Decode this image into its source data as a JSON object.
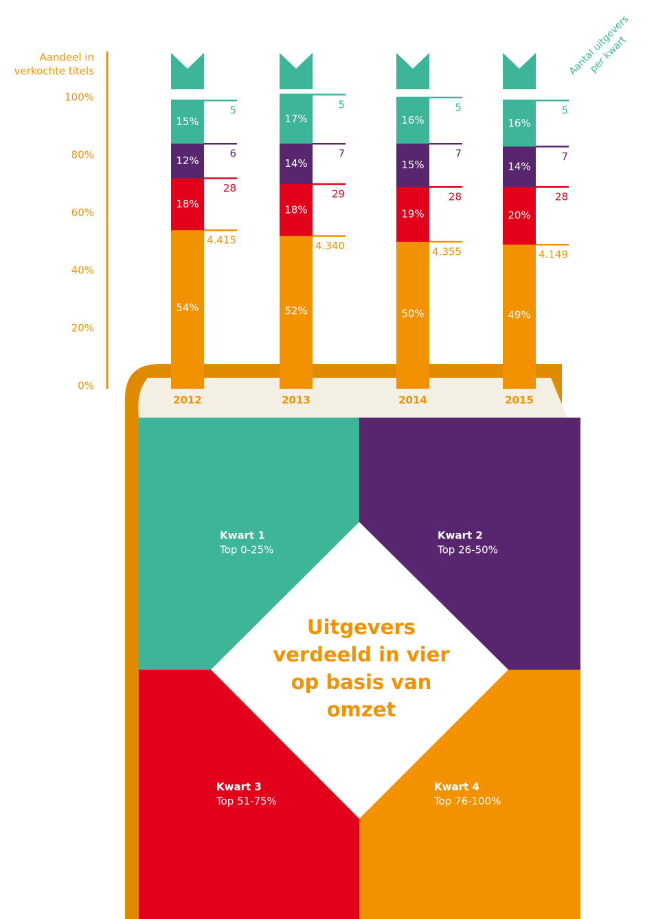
{
  "chart_data": {
    "type": "stacked-bar",
    "y_label": [
      "Aandeel in",
      "verkochte titels"
    ],
    "annotation": [
      "Aantal uitgevers",
      "per kwart"
    ],
    "title": [
      "Uitgevers",
      "verdeeld in vier",
      "op basis van",
      "omzet"
    ],
    "categories": [
      "2012",
      "2013",
      "2014",
      "2015"
    ],
    "ylim": [
      0,
      100
    ],
    "yticks": [
      {
        "value": 0,
        "label": "0%"
      },
      {
        "value": 20,
        "label": "20%"
      },
      {
        "value": 40,
        "label": "40%"
      },
      {
        "value": 60,
        "label": "60%"
      },
      {
        "value": 80,
        "label": "80%"
      },
      {
        "value": 100,
        "label": "100%"
      }
    ],
    "series": [
      {
        "name": "Kwart 1",
        "description": "Top 0-25%",
        "color": "#3db598",
        "values": [
          15,
          17,
          16,
          16
        ],
        "value_labels": [
          "15%",
          "17%",
          "16%",
          "16%"
        ],
        "publishers": [
          5,
          5,
          5,
          5
        ]
      },
      {
        "name": "Kwart 2",
        "description": "Top 26-50%",
        "color": "#58266f",
        "values": [
          12,
          14,
          15,
          14
        ],
        "value_labels": [
          "12%",
          "14%",
          "15%",
          "14%"
        ],
        "publishers": [
          6,
          7,
          7,
          7
        ]
      },
      {
        "name": "Kwart 3",
        "description": "Top 51-75%",
        "color": "#e3001b",
        "values": [
          18,
          18,
          19,
          20
        ],
        "value_labels": [
          "18%",
          "18%",
          "19%",
          "20%"
        ],
        "publishers": [
          28,
          29,
          28,
          28
        ]
      },
      {
        "name": "Kwart 4",
        "description": "Top 76-100%",
        "color": "#f39200",
        "values": [
          54,
          52,
          50,
          49
        ],
        "value_labels": [
          "54%",
          "52%",
          "50%",
          "49%"
        ],
        "publishers": [
          4415,
          4340,
          4355,
          4149
        ],
        "publisher_labels": [
          "4.415",
          "4.340",
          "4.355",
          "4.149"
        ]
      }
    ]
  }
}
